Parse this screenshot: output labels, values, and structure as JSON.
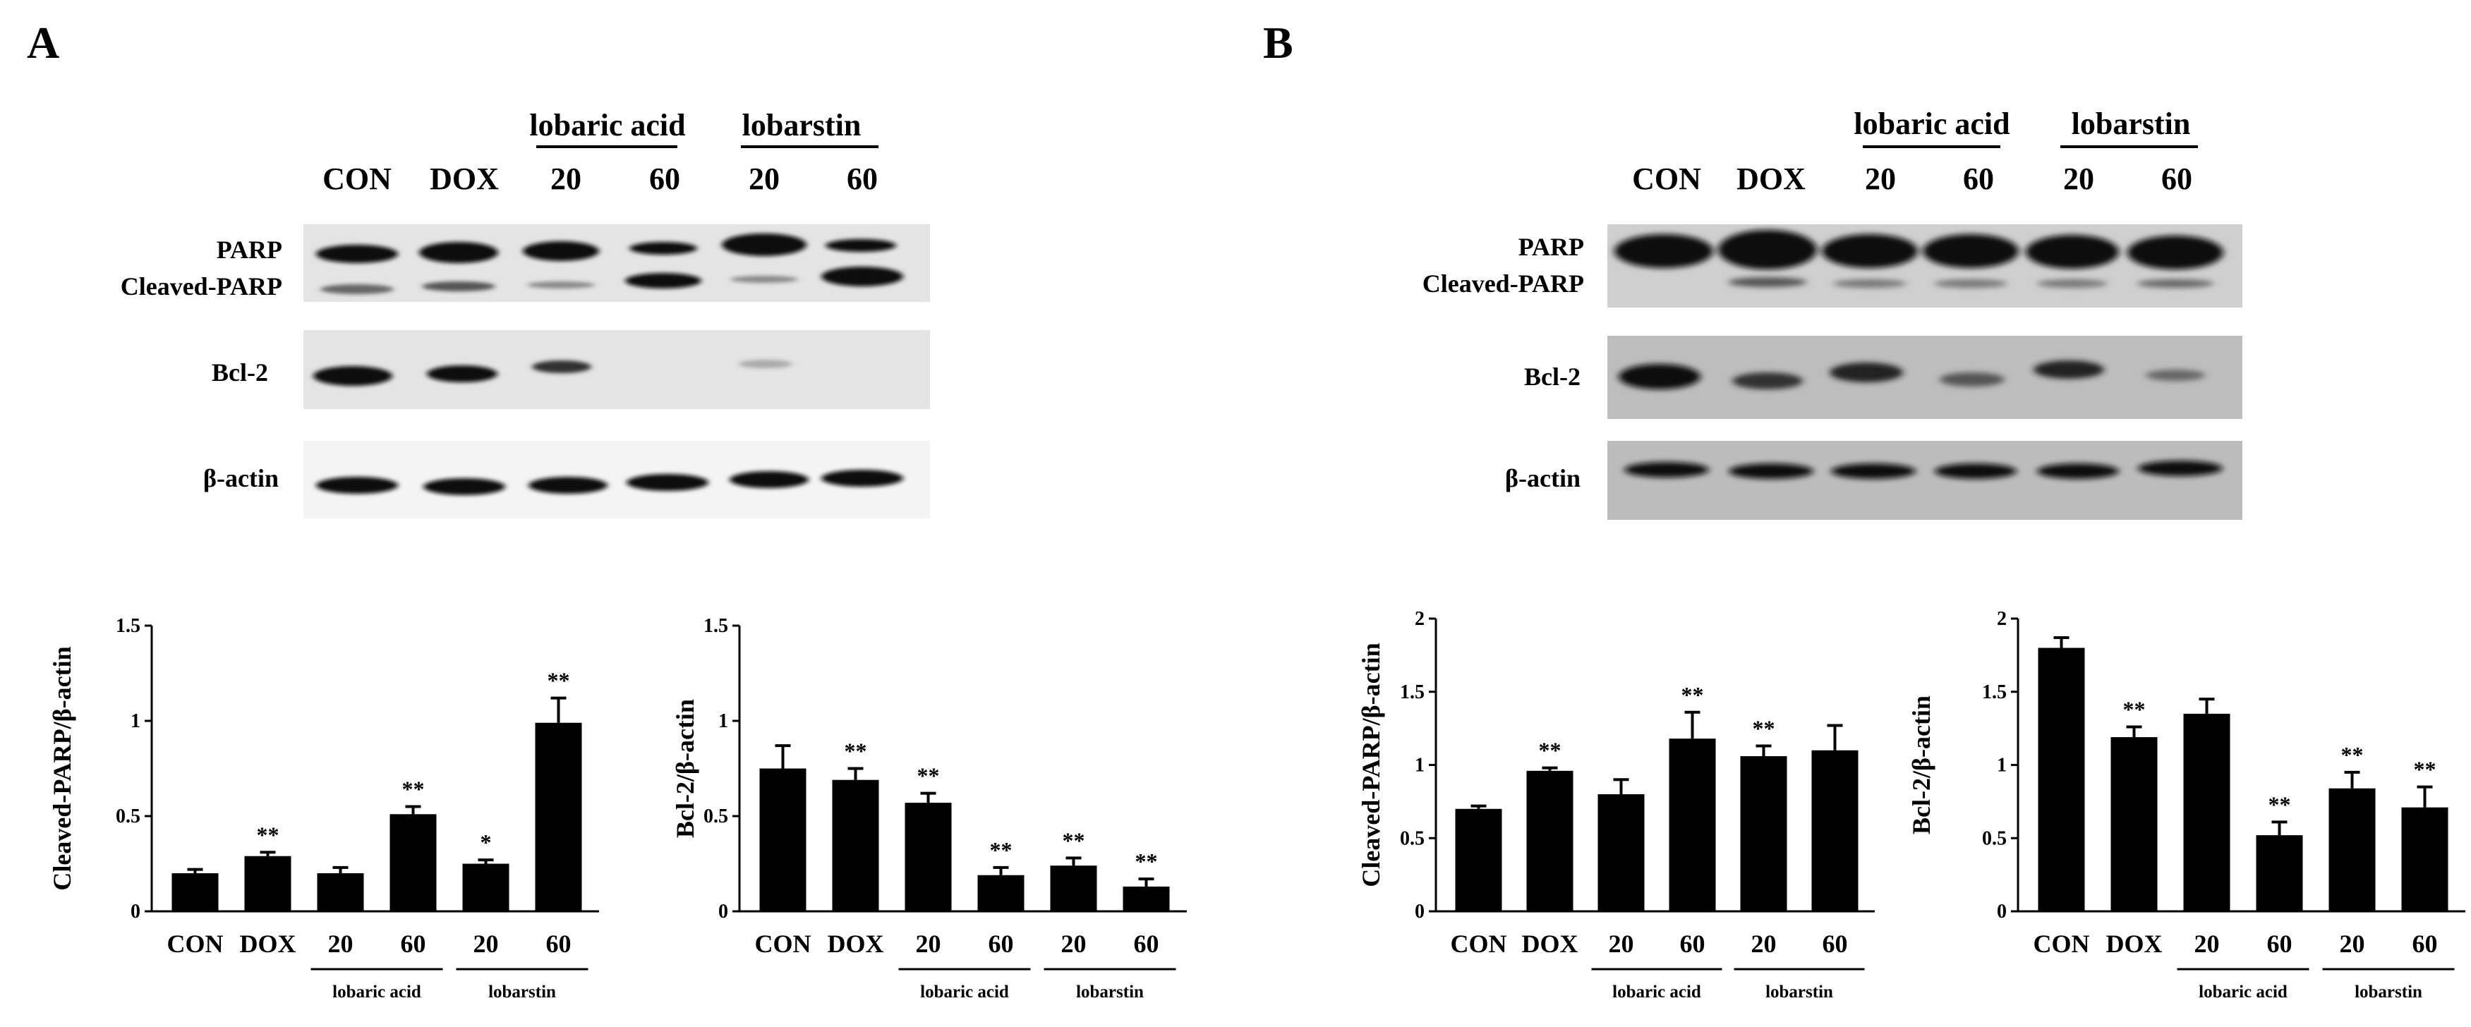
{
  "panels": [
    {
      "letter": "A",
      "blot": {
        "group_headers": [
          "lobaric acid",
          "lobarstin"
        ],
        "lanes": [
          "CON",
          "DOX",
          "20",
          "60",
          "20",
          "60"
        ],
        "rows": [
          "PARP",
          "Cleaved-PARP",
          "Bcl-2",
          "β-actin"
        ]
      }
    },
    {
      "letter": "B",
      "blot": {
        "group_headers": [
          "lobaric acid",
          "lobarstin"
        ],
        "lanes": [
          "CON",
          "DOX",
          "20",
          "60",
          "20",
          "60"
        ],
        "rows": [
          "PARP",
          "Cleaved-PARP",
          "Bcl-2",
          "β-actin"
        ]
      }
    }
  ],
  "chart_data": [
    {
      "type": "bar",
      "panel": "A",
      "ylabel": "Cleaved-PARP/β-actin",
      "ylim": [
        0,
        1.5
      ],
      "yticks": [
        "0",
        "0.5",
        "1",
        "1.5"
      ],
      "categories": [
        "CON",
        "DOX",
        "20",
        "60",
        "20",
        "60"
      ],
      "groups": [
        "lobaric acid",
        "lobarstin"
      ],
      "values": [
        0.2,
        0.29,
        0.2,
        0.51,
        0.25,
        0.99
      ],
      "errors": [
        0.02,
        0.02,
        0.03,
        0.04,
        0.02,
        0.13
      ],
      "significance": [
        "",
        "**",
        "",
        "**",
        "*",
        "**"
      ]
    },
    {
      "type": "bar",
      "panel": "A",
      "ylabel": "Bcl-2/β-actin",
      "ylim": [
        0,
        1.5
      ],
      "yticks": [
        "0",
        "0.5",
        "1",
        "1.5"
      ],
      "categories": [
        "CON",
        "DOX",
        "20",
        "60",
        "20",
        "60"
      ],
      "groups": [
        "lobaric acid",
        "lobarstin"
      ],
      "values": [
        0.75,
        0.69,
        0.57,
        0.19,
        0.24,
        0.13
      ],
      "errors": [
        0.12,
        0.06,
        0.05,
        0.04,
        0.04,
        0.04
      ],
      "significance": [
        "",
        "**",
        "**",
        "**",
        "**",
        "**"
      ]
    },
    {
      "type": "bar",
      "panel": "B",
      "ylabel": "Cleaved-PARP/β-actin",
      "ylim": [
        0,
        2
      ],
      "yticks": [
        "0",
        "0.5",
        "1",
        "1.5",
        "2"
      ],
      "categories": [
        "CON",
        "DOX",
        "20",
        "60",
        "20",
        "60"
      ],
      "groups": [
        "lobaric acid",
        "lobarstin"
      ],
      "values": [
        0.7,
        0.96,
        0.8,
        1.18,
        1.06,
        1.1
      ],
      "errors": [
        0.02,
        0.02,
        0.1,
        0.18,
        0.07,
        0.17
      ],
      "significance": [
        "",
        "**",
        "",
        "**",
        "**",
        ""
      ]
    },
    {
      "type": "bar",
      "panel": "B",
      "ylabel": "Bcl-2/β-actin",
      "ylim": [
        0,
        2
      ],
      "yticks": [
        "0",
        "0.5",
        "1",
        "1.5",
        "2"
      ],
      "categories": [
        "CON",
        "DOX",
        "20",
        "60",
        "20",
        "60"
      ],
      "groups": [
        "lobaric acid",
        "lobarstin"
      ],
      "values": [
        1.8,
        1.19,
        1.35,
        0.52,
        0.84,
        0.71
      ],
      "errors": [
        0.07,
        0.07,
        0.1,
        0.09,
        0.11,
        0.14
      ],
      "significance": [
        "",
        "**",
        "",
        "**",
        "**",
        "**"
      ]
    }
  ],
  "colors": {
    "bar": "#000000",
    "axis": "#000000",
    "background": "#ffffff"
  }
}
